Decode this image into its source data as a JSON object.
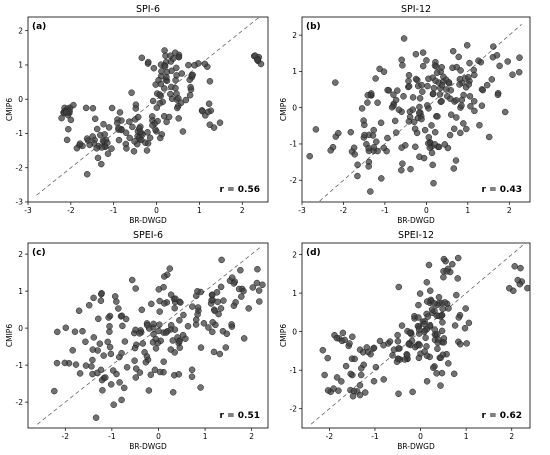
{
  "chart_data": [
    {
      "type": "scatter",
      "panel_label": "(a)",
      "title": "SPI-6",
      "xlabel": "BR-DWGD",
      "ylabel": "CMIP6",
      "xlim": [
        -3,
        2.6
      ],
      "ylim": [
        -3,
        2.4
      ],
      "xticks": [
        -3,
        -2,
        -1,
        0,
        1,
        2
      ],
      "yticks": [
        -3,
        -2,
        -1,
        0,
        1,
        2
      ],
      "ref_line": [
        [
          -2.8,
          -2.8
        ],
        [
          2.4,
          2.4
        ]
      ],
      "r_label": "r = 0.56",
      "seed": 11,
      "clusters": [
        {
          "n": 70,
          "cx": -0.7,
          "cy": -0.9,
          "sx": 0.55,
          "sy": 0.4
        },
        {
          "n": 45,
          "cx": 0.3,
          "cy": 0.2,
          "sx": 0.35,
          "sy": 0.55
        },
        {
          "n": 25,
          "cx": 0.5,
          "cy": 0.9,
          "sx": 0.3,
          "sy": 0.35
        },
        {
          "n": 15,
          "cx": -2.1,
          "cy": -0.35,
          "sx": 0.12,
          "sy": 0.12
        },
        {
          "n": 12,
          "cx": -1.5,
          "cy": -1.6,
          "sx": 0.2,
          "sy": 0.35
        },
        {
          "n": 8,
          "cx": 2.35,
          "cy": 1.25,
          "sx": 0.08,
          "sy": 0.12
        },
        {
          "n": 7,
          "cx": 1.3,
          "cy": -0.5,
          "sx": 0.15,
          "sy": 0.2
        }
      ]
    },
    {
      "type": "scatter",
      "panel_label": "(b)",
      "title": "SPI-12",
      "xlabel": "BR-DWGD",
      "ylabel": "CMIP6",
      "xlim": [
        -3,
        2.5
      ],
      "ylim": [
        -2.6,
        2.5
      ],
      "xticks": [
        -3,
        -2,
        -1,
        0,
        1,
        2
      ],
      "yticks": [
        -2,
        -1,
        0,
        1,
        2
      ],
      "ref_line": [
        [
          -2.7,
          -2.7
        ],
        [
          2.3,
          2.3
        ]
      ],
      "r_label": "r = 0.43",
      "seed": 23,
      "clusters": [
        {
          "n": 110,
          "cx": -0.5,
          "cy": -0.4,
          "sx": 0.8,
          "sy": 0.75
        },
        {
          "n": 60,
          "cx": 0.4,
          "cy": 0.5,
          "sx": 0.55,
          "sy": 0.6
        },
        {
          "n": 20,
          "cx": 1.5,
          "cy": 1.0,
          "sx": 0.45,
          "sy": 0.5
        },
        {
          "n": 12,
          "cx": -1.8,
          "cy": -1.3,
          "sx": 0.4,
          "sy": 0.4
        }
      ]
    },
    {
      "type": "scatter",
      "panel_label": "(c)",
      "title": "SPEI-6",
      "xlabel": "BR-DWGD",
      "ylabel": "CMIP6",
      "xlim": [
        -2.8,
        2.35
      ],
      "ylim": [
        -2.7,
        2.3
      ],
      "xticks": [
        -2,
        -1,
        0,
        1,
        2
      ],
      "yticks": [
        -2,
        -1,
        0,
        1,
        2
      ],
      "ref_line": [
        [
          -2.6,
          -2.6
        ],
        [
          2.2,
          2.2
        ]
      ],
      "r_label": "r = 0.51",
      "seed": 37,
      "clusters": [
        {
          "n": 100,
          "cx": -0.4,
          "cy": -0.4,
          "sx": 0.75,
          "sy": 0.7
        },
        {
          "n": 60,
          "cx": 0.5,
          "cy": 0.5,
          "sx": 0.6,
          "sy": 0.6
        },
        {
          "n": 20,
          "cx": 1.6,
          "cy": 1.0,
          "sx": 0.35,
          "sy": 0.55
        },
        {
          "n": 15,
          "cx": -1.6,
          "cy": -1.2,
          "sx": 0.35,
          "sy": 0.6
        }
      ]
    },
    {
      "type": "scatter",
      "panel_label": "(d)",
      "title": "SPEI-12",
      "xlabel": "BR-DWGD",
      "ylabel": "CMIP6",
      "xlim": [
        -2.6,
        2.4
      ],
      "ylim": [
        -2.5,
        2.3
      ],
      "xticks": [
        -2,
        -1,
        0,
        1,
        2
      ],
      "yticks": [
        -2,
        -1,
        0,
        1,
        2
      ],
      "ref_line": [
        [
          -2.4,
          -2.4
        ],
        [
          2.3,
          2.3
        ]
      ],
      "r_label": "r = 0.62",
      "seed": 53,
      "clusters": [
        {
          "n": 70,
          "cx": 0.1,
          "cy": -0.3,
          "sx": 0.45,
          "sy": 0.55
        },
        {
          "n": 40,
          "cx": 0.4,
          "cy": 0.6,
          "sx": 0.35,
          "sy": 0.45
        },
        {
          "n": 30,
          "cx": -1.0,
          "cy": -0.8,
          "sx": 0.5,
          "sy": 0.4
        },
        {
          "n": 15,
          "cx": -1.6,
          "cy": -1.5,
          "sx": 0.3,
          "sy": 0.3
        },
        {
          "n": 10,
          "cx": 0.6,
          "cy": 1.6,
          "sx": 0.25,
          "sy": 0.2
        },
        {
          "n": 8,
          "cx": 2.2,
          "cy": 1.2,
          "sx": 0.15,
          "sy": 0.2
        },
        {
          "n": 8,
          "cx": -1.8,
          "cy": -0.2,
          "sx": 0.2,
          "sy": 0.1
        }
      ]
    }
  ]
}
